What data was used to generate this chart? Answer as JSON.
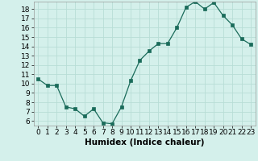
{
  "x": [
    0,
    1,
    2,
    3,
    4,
    5,
    6,
    7,
    8,
    9,
    10,
    11,
    12,
    13,
    14,
    15,
    16,
    17,
    18,
    19,
    20,
    21,
    22,
    23
  ],
  "y": [
    10.5,
    9.8,
    9.8,
    7.5,
    7.3,
    6.5,
    7.3,
    5.8,
    5.7,
    7.5,
    10.3,
    12.5,
    13.5,
    14.3,
    14.3,
    16.0,
    18.2,
    18.8,
    18.0,
    18.7,
    17.3,
    16.3,
    14.8,
    14.2
  ],
  "line_color": "#1a6b5a",
  "marker_color": "#1a6b5a",
  "bg_color": "#d4f0eb",
  "grid_color": "#b8ddd6",
  "xlabel": "Humidex (Indice chaleur)",
  "xlim": [
    -0.5,
    23.5
  ],
  "ylim": [
    5.5,
    18.8
  ],
  "yticks": [
    6,
    7,
    8,
    9,
    10,
    11,
    12,
    13,
    14,
    15,
    16,
    17,
    18
  ],
  "xticks": [
    0,
    1,
    2,
    3,
    4,
    5,
    6,
    7,
    8,
    9,
    10,
    11,
    12,
    13,
    14,
    15,
    16,
    17,
    18,
    19,
    20,
    21,
    22,
    23
  ],
  "xlabel_fontsize": 7.5,
  "tick_fontsize": 6.5
}
